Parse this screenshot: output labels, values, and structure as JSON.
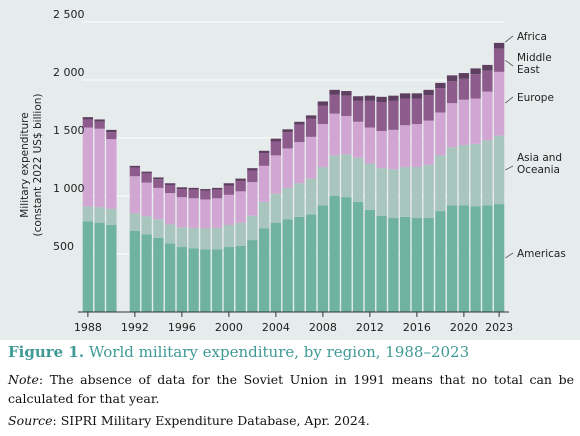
{
  "figure": {
    "label": "Figure 1.",
    "title": "World military expenditure, by region, 1988–2023",
    "note_label": "Note",
    "note_text": ": The absence of data for the Soviet Union in 1991 means that no total can be calculated for that year.",
    "source_label": "Source",
    "source_text": ": SIPRI Military Expenditure Database, Apr. 2024."
  },
  "colors": {
    "background": "#e6ebec",
    "Americas": "#6fb29e",
    "Asia and Oceania": "#a8c6be",
    "Europe": "#d2a6d2",
    "Middle East": "#8d5c8d",
    "Africa": "#5e3f60",
    "caption": "#3f9a95"
  },
  "chart_data": {
    "type": "bar",
    "stacked": true,
    "ylabel_lines": [
      "Military expenditure",
      "(constant 2022 US$ billion)"
    ],
    "ylim": [
      0,
      2500
    ],
    "yticks": [
      500,
      1000,
      1500,
      2000,
      2500
    ],
    "ytick_labels": [
      "500",
      "1 000",
      "1 500",
      "2 000",
      "2 500"
    ],
    "xticks": [
      1988,
      1992,
      1996,
      2000,
      2004,
      2008,
      2012,
      2016,
      2020,
      2023
    ],
    "categories": [
      1988,
      1989,
      1990,
      1991,
      1992,
      1993,
      1994,
      1995,
      1996,
      1997,
      1998,
      1999,
      2000,
      2001,
      2002,
      2003,
      2004,
      2005,
      2006,
      2007,
      2008,
      2009,
      2010,
      2011,
      2012,
      2013,
      2014,
      2015,
      2016,
      2017,
      2018,
      2019,
      2020,
      2021,
      2022,
      2023
    ],
    "legend_position": "right",
    "legend": [
      "Africa",
      "Middle East",
      "Europe",
      "Asia and Oceania",
      "Americas"
    ],
    "series": [
      {
        "name": "Americas",
        "values": [
          780,
          770,
          750,
          null,
          700,
          670,
          640,
          590,
          560,
          550,
          540,
          540,
          560,
          570,
          620,
          720,
          770,
          800,
          820,
          840,
          920,
          1000,
          990,
          950,
          880,
          830,
          810,
          820,
          810,
          810,
          870,
          920,
          920,
          910,
          920,
          930
        ]
      },
      {
        "name": "Asia and Oceania",
        "values": [
          130,
          135,
          140,
          null,
          150,
          155,
          160,
          165,
          170,
          175,
          180,
          185,
          190,
          200,
          210,
          230,
          250,
          270,
          290,
          310,
          330,
          350,
          370,
          380,
          400,
          410,
          420,
          430,
          440,
          460,
          480,
          500,
          520,
          540,
          560,
          590
        ]
      },
      {
        "name": "Europe",
        "values": [
          680,
          675,
          600,
          null,
          320,
          290,
          270,
          270,
          260,
          255,
          250,
          255,
          260,
          270,
          290,
          310,
          330,
          340,
          355,
          360,
          370,
          360,
          330,
          310,
          310,
          320,
          340,
          360,
          370,
          380,
          370,
          380,
          390,
          390,
          420,
          550
        ]
      },
      {
        "name": "Middle East",
        "values": [
          70,
          60,
          60,
          null,
          75,
          80,
          75,
          70,
          70,
          75,
          75,
          75,
          80,
          90,
          100,
          110,
          120,
          140,
          150,
          155,
          160,
          165,
          175,
          180,
          230,
          250,
          250,
          230,
          220,
          220,
          210,
          190,
          180,
          210,
          180,
          200
        ]
      },
      {
        "name": "Africa",
        "values": [
          20,
          20,
          20,
          null,
          15,
          15,
          15,
          15,
          15,
          15,
          15,
          15,
          20,
          20,
          20,
          20,
          25,
          25,
          25,
          30,
          35,
          40,
          40,
          40,
          45,
          45,
          45,
          45,
          45,
          45,
          45,
          50,
          50,
          50,
          50,
          50
        ]
      }
    ]
  }
}
